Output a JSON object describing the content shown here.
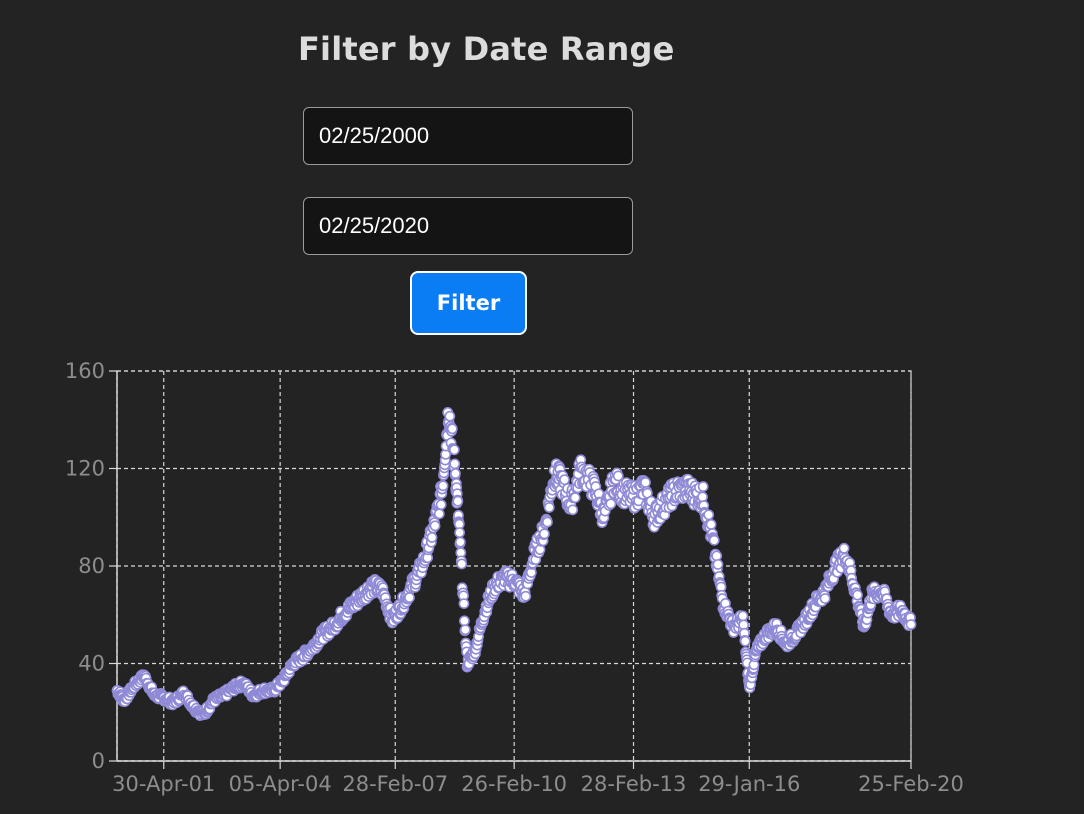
{
  "page": {
    "title": "Filter by Date Range",
    "start_date": "02/25/2000",
    "end_date": "02/25/2020",
    "filter_label": "Filter"
  },
  "colors": {
    "background": "#232323",
    "button": "#0a7cf4",
    "series_stroke": "#8f8ad6",
    "series_fill": "#ffffff",
    "grid": "#d8d8d8"
  },
  "chart_data": {
    "type": "scatter",
    "title": "",
    "xlabel": "",
    "ylabel": "",
    "ylim": [
      0,
      160
    ],
    "y_ticks": [
      0,
      40,
      80,
      120,
      160
    ],
    "x_tick_labels": [
      "30-Apr-01",
      "05-Apr-04",
      "28-Feb-07",
      "26-Feb-10",
      "28-Feb-13",
      "29-Jan-16",
      "25-Feb-20"
    ],
    "xlim": [
      "2000-02-25",
      "2020-02-25"
    ],
    "grid": true,
    "legend": "none",
    "series": [
      {
        "x": [
          "2000-02-25",
          "2000-05-01",
          "2000-08-01",
          "2000-11-01",
          "2001-02-01",
          "2001-05-01",
          "2001-08-01",
          "2001-11-01",
          "2002-02-01",
          "2002-05-01",
          "2002-08-01",
          "2002-11-01",
          "2003-02-01",
          "2003-05-01",
          "2003-08-01",
          "2003-11-01",
          "2004-02-01",
          "2004-05-01",
          "2004-08-01",
          "2004-11-01",
          "2005-02-01",
          "2005-05-01",
          "2005-08-01",
          "2005-11-01",
          "2006-02-01",
          "2006-05-01",
          "2006-08-01",
          "2006-11-01",
          "2007-02-01",
          "2007-05-01",
          "2007-08-01",
          "2007-11-01",
          "2008-02-01",
          "2008-05-01",
          "2008-07-03",
          "2008-09-01",
          "2008-10-15",
          "2008-12-20",
          "2009-03-01",
          "2009-06-01",
          "2009-09-01",
          "2009-12-01",
          "2010-03-01",
          "2010-06-01",
          "2010-09-01",
          "2010-12-01",
          "2011-03-01",
          "2011-05-01",
          "2011-08-01",
          "2011-11-01",
          "2012-03-01",
          "2012-06-01",
          "2012-09-01",
          "2012-12-01",
          "2013-03-01",
          "2013-06-01",
          "2013-09-01",
          "2013-12-01",
          "2014-03-01",
          "2014-06-15",
          "2014-09-01",
          "2014-12-01",
          "2015-03-01",
          "2015-06-01",
          "2015-09-01",
          "2015-12-01",
          "2016-01-29",
          "2016-04-01",
          "2016-07-01",
          "2016-10-01",
          "2017-01-01",
          "2017-04-01",
          "2017-07-01",
          "2017-10-01",
          "2018-01-01",
          "2018-04-01",
          "2018-07-01",
          "2018-10-01",
          "2018-12-20",
          "2019-03-01",
          "2019-06-01",
          "2019-09-01",
          "2019-12-01",
          "2020-02-25"
        ],
        "y": [
          29,
          25,
          31,
          35,
          27,
          26,
          24,
          28,
          22,
          19,
          25,
          27,
          30,
          32,
          27,
          29,
          29,
          33,
          40,
          43,
          47,
          52,
          55,
          60,
          64,
          68,
          72,
          70,
          58,
          64,
          72,
          80,
          93,
          110,
          145,
          120,
          90,
          40,
          45,
          62,
          72,
          75,
          74,
          68,
          85,
          95,
          118,
          115,
          105,
          120,
          112,
          100,
          115,
          110,
          108,
          112,
          100,
          105,
          110,
          112,
          110,
          108,
          90,
          65,
          55,
          58,
          30,
          45,
          52,
          55,
          48,
          52,
          58,
          65,
          70,
          80,
          85,
          70,
          55,
          68,
          70,
          60,
          62,
          56
        ]
      }
    ]
  }
}
